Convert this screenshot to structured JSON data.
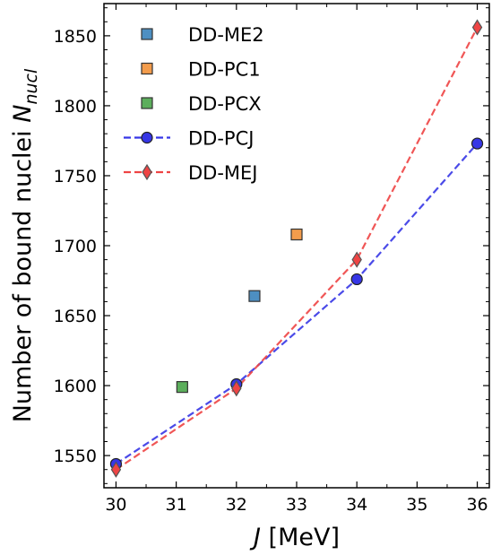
{
  "chart_data": {
    "type": "scatter",
    "title": "",
    "xlabel_italic": "J",
    "xlabel_rest": " [MeV]",
    "ylabel_main": "Number of bound nuclei ",
    "ylabel_sym": "N",
    "ylabel_sub": "nucl",
    "xlim": [
      29.8,
      36.2
    ],
    "ylim": [
      1527,
      1873
    ],
    "xticks": [
      30,
      31,
      32,
      33,
      34,
      35,
      36
    ],
    "yticks": [
      1550,
      1600,
      1650,
      1700,
      1750,
      1800,
      1850
    ],
    "legend_position": "top-left",
    "series": [
      {
        "name": "DD-ME2",
        "kind": "square",
        "color": "#4d8fc2",
        "x": [
          32.3
        ],
        "y": [
          1664
        ]
      },
      {
        "name": "DD-PC1",
        "kind": "square",
        "color": "#f39c4c",
        "x": [
          33.0
        ],
        "y": [
          1708
        ]
      },
      {
        "name": "DD-PCX",
        "kind": "square",
        "color": "#5cae5c",
        "x": [
          31.1
        ],
        "y": [
          1599
        ]
      },
      {
        "name": "DD-PCJ",
        "kind": "circle-line",
        "color": "#3636e6",
        "x": [
          30,
          32,
          34,
          36
        ],
        "y": [
          1544,
          1601,
          1676,
          1773
        ]
      },
      {
        "name": "DD-MEJ",
        "kind": "diamond-line",
        "color": "#ee4444",
        "x": [
          30,
          32,
          34,
          36
        ],
        "y": [
          1540,
          1598,
          1690,
          1856
        ]
      }
    ]
  }
}
